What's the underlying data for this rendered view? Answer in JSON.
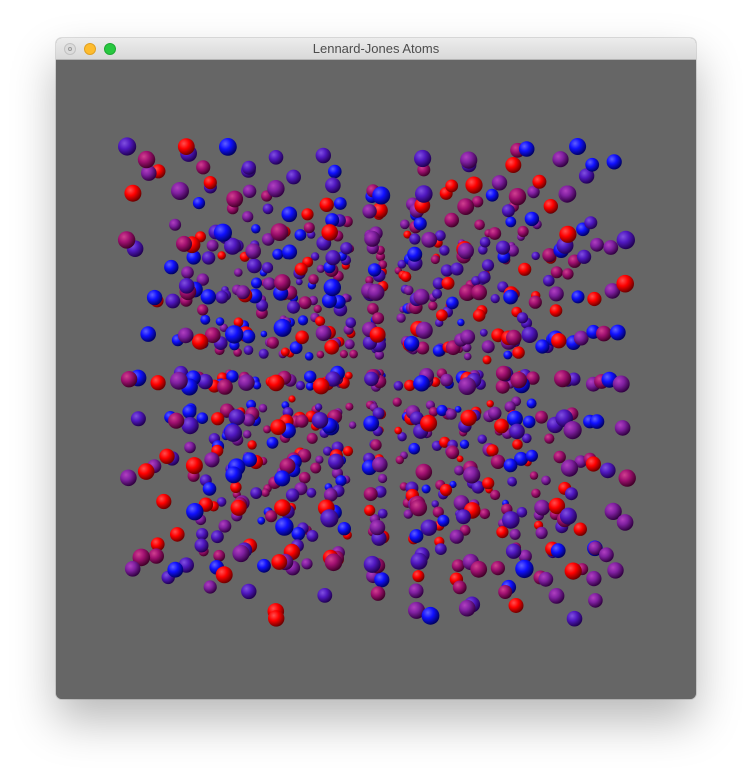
{
  "window": {
    "title": "Lennard-Jones Atoms",
    "buttons": {
      "close": "close-button",
      "minimize": "minimize-button",
      "zoom": "zoom-button"
    }
  },
  "scene": {
    "background_color": "#666666",
    "atom_color_hot": "#ff0000",
    "atom_color_cold": "#0000ff",
    "atom_color_mid": "#800080"
  }
}
